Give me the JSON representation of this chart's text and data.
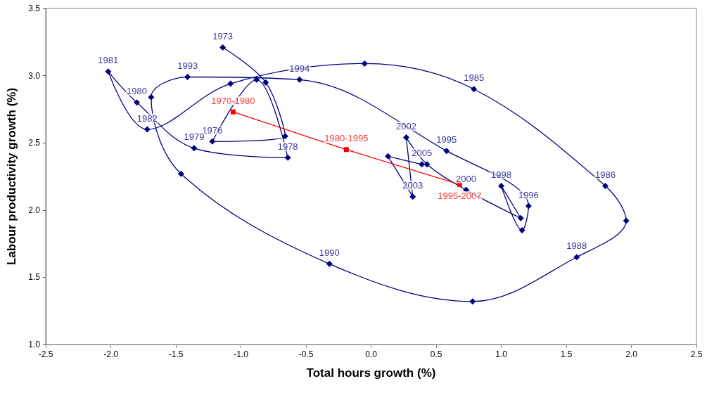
{
  "chart_data": {
    "type": "line",
    "xlabel": "Total hours growth (%)",
    "ylabel": "Labour productivity growth (%)",
    "xlim": [
      -2.5,
      2.5
    ],
    "xticks": [
      -2.5,
      {
        "value": -2,
        "label": "-2.0"
      },
      -1.5,
      {
        "value": -1,
        "label": "-1.0"
      },
      -0.5,
      {
        "value": 0,
        "label": "0.0"
      },
      0.5,
      {
        "value": 1,
        "label": "1.0"
      },
      1.5,
      {
        "value": 2,
        "label": "2.0"
      },
      2.5
    ],
    "ylim": [
      1,
      3.5
    ],
    "yticks": [
      {
        "value": 1,
        "label": "1.0"
      },
      1.5,
      {
        "value": 2,
        "label": "2.0"
      },
      2.5,
      {
        "value": 3,
        "label": "3.0"
      },
      3.5
    ],
    "grid": false,
    "line_style": "solid",
    "series": [
      {
        "color": "#000080",
        "marker": "diamond",
        "x": [
          -1.14,
          -0.81,
          -0.66,
          -1.22,
          -0.88,
          -0.64,
          -1.36,
          -1.8,
          -2.02,
          -1.72,
          -1.08,
          -0.05,
          0.79,
          1.8,
          1.96,
          1.58,
          0.78,
          -0.32,
          -1.46,
          -1.69,
          -1.41,
          -0.55,
          0.58,
          1.21,
          1.16,
          1.0,
          1.15,
          0.73,
          0.43,
          0.27,
          0.32,
          0.13,
          0.39
        ],
        "values": [
          3.21,
          2.95,
          2.55,
          2.51,
          2.97,
          2.39,
          2.46,
          2.8,
          3.03,
          2.6,
          2.94,
          3.09,
          2.9,
          2.18,
          1.92,
          1.65,
          1.32,
          1.6,
          2.27,
          2.84,
          2.99,
          2.97,
          2.44,
          2.03,
          1.85,
          2.18,
          1.94,
          2.15,
          2.34,
          2.54,
          2.1,
          2.4,
          2.34
        ]
      },
      {
        "color": "#ff0000",
        "marker": "square",
        "x": [
          -1.06,
          -0.19,
          0.68
        ],
        "values": [
          2.73,
          2.45,
          2.19
        ]
      }
    ],
    "annotations": [
      {
        "text": "1973",
        "x": -1.14,
        "y": 3.21
      },
      {
        "text": "1976",
        "x": -1.22,
        "y": 2.51
      },
      {
        "text": "1978",
        "x": -0.64,
        "y": 2.39
      },
      {
        "text": "1979",
        "x": -1.36,
        "y": 2.46
      },
      {
        "text": "1980",
        "x": -1.8,
        "y": 2.8
      },
      {
        "text": "1981",
        "x": -2.02,
        "y": 3.03
      },
      {
        "text": "1982",
        "x": -1.72,
        "y": 2.6
      },
      {
        "text": "1985",
        "x": 0.79,
        "y": 2.9
      },
      {
        "text": "1986",
        "x": 1.8,
        "y": 2.18
      },
      {
        "text": "1988",
        "x": 1.58,
        "y": 1.65
      },
      {
        "text": "1990",
        "x": -0.32,
        "y": 1.6
      },
      {
        "text": "1993",
        "x": -1.41,
        "y": 2.99
      },
      {
        "text": "1994",
        "x": -0.55,
        "y": 2.97
      },
      {
        "text": "1995",
        "x": 0.58,
        "y": 2.44
      },
      {
        "text": "1996",
        "x": 1.21,
        "y": 2.03
      },
      {
        "text": "1998",
        "x": 1.0,
        "y": 2.18
      },
      {
        "text": "2000",
        "x": 0.73,
        "y": 2.15
      },
      {
        "text": "2002",
        "x": 0.27,
        "y": 2.54
      },
      {
        "text": "2003",
        "x": 0.32,
        "y": 2.1
      },
      {
        "text": "2005",
        "x": 0.39,
        "y": 2.34
      },
      {
        "text": "1970-1980",
        "x": -1.06,
        "y": 2.73
      },
      {
        "text": "1980-1995",
        "x": -0.19,
        "y": 2.45
      },
      {
        "text": "1995-2007",
        "x": 0.68,
        "y": 2.19
      }
    ]
  }
}
